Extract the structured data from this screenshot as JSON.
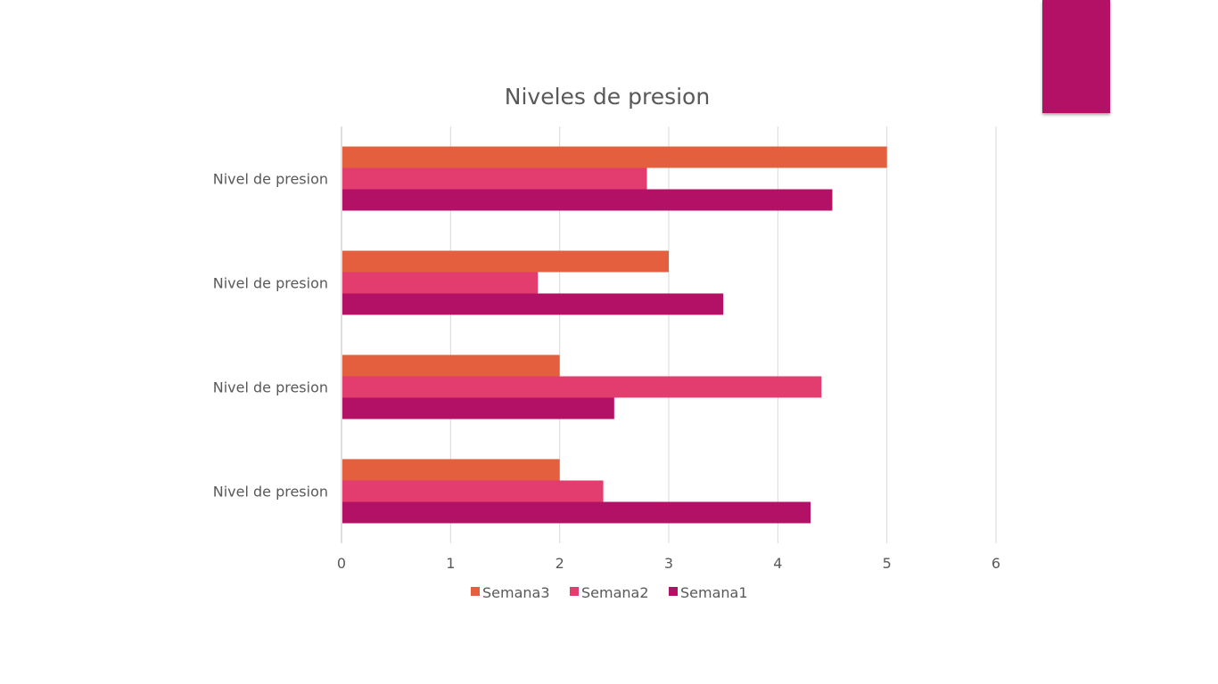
{
  "slide": {
    "accent_color": "#B31166"
  },
  "chart_data": {
    "type": "bar",
    "orientation": "horizontal",
    "title": "Niveles de presion",
    "categories": [
      "Nivel de presion",
      "Nivel de presion",
      "Nivel de presion",
      "Nivel de presion"
    ],
    "series": [
      {
        "name": "Semana3",
        "color": "#E35F3D",
        "values": [
          5,
          3,
          2,
          2
        ]
      },
      {
        "name": "Semana2",
        "color": "#E33D6F",
        "values": [
          2.8,
          1.8,
          4.4,
          2.4
        ]
      },
      {
        "name": "Semana1",
        "color": "#B31166",
        "values": [
          4.5,
          3.5,
          2.5,
          4.3
        ]
      }
    ],
    "xlim": [
      0,
      6
    ],
    "xticks": [
      "0",
      "1",
      "2",
      "3",
      "4",
      "5",
      "6"
    ],
    "xlabel": "",
    "ylabel": "",
    "grid": true,
    "legend_position": "bottom"
  }
}
